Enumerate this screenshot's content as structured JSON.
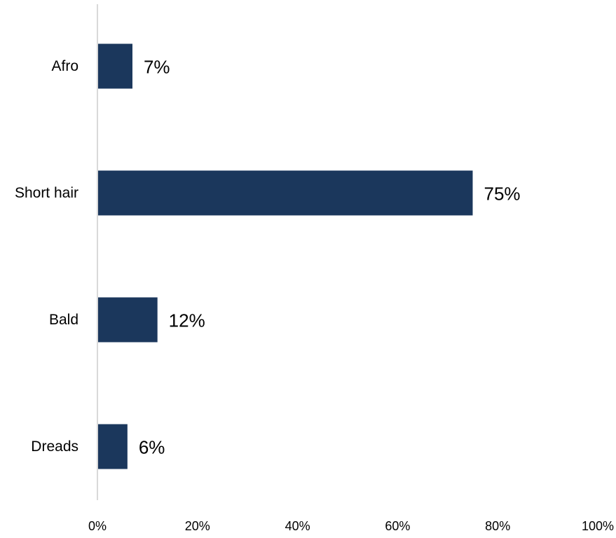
{
  "chart_data": {
    "type": "bar",
    "orientation": "horizontal",
    "categories": [
      "Afro",
      "Short hair",
      "Bald",
      "Dreads"
    ],
    "values": [
      7,
      75,
      12,
      6
    ],
    "data_labels": [
      "7%",
      "75%",
      "12%",
      "6%"
    ],
    "xlim": [
      0,
      100
    ],
    "x_ticks": [
      0,
      20,
      40,
      60,
      80,
      100
    ],
    "x_tick_labels": [
      "0%",
      "20%",
      "40%",
      "60%",
      "80%",
      "100%"
    ],
    "title": "",
    "xlabel": "",
    "ylabel": "",
    "grid": false,
    "legend": "none",
    "bar_color": "#1b375c",
    "axis_color": "#d9d9d9"
  }
}
